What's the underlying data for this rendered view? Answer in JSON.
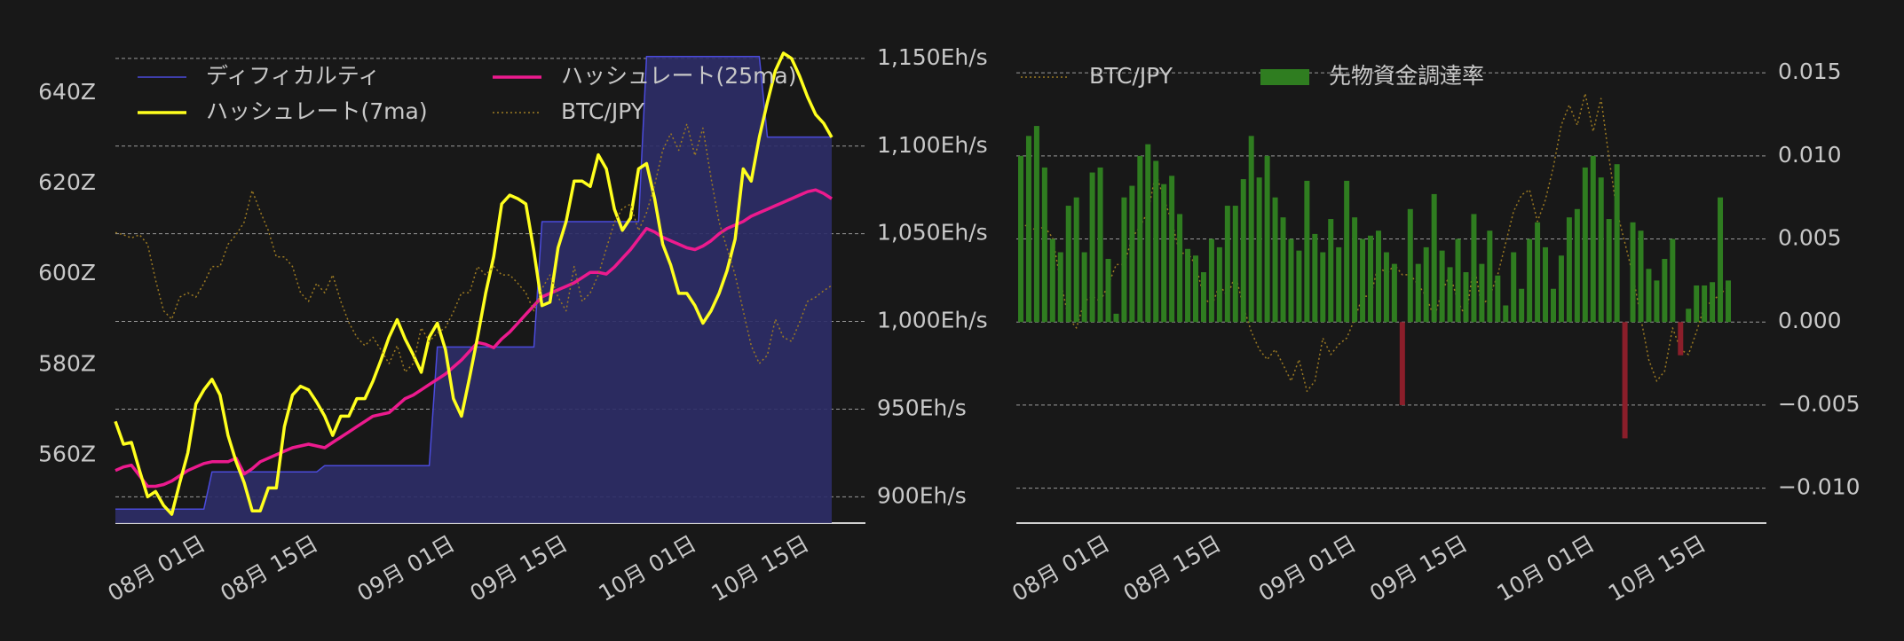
{
  "chart_data": [
    {
      "type": "line",
      "x": [
        "07月 21日",
        "07月 22日",
        "07月 23日",
        "07月 24日",
        "07月 25日",
        "07月 26日",
        "07月 27日",
        "07月 28日",
        "07月 29日",
        "07月 30日",
        "07月 31日",
        "08月 01日",
        "08月 02日",
        "08月 03日",
        "08月 04日",
        "08月 05日",
        "08月 06日",
        "08月 07日",
        "08月 08日",
        "08月 09日",
        "08月 10日",
        "08月 11日",
        "08月 12日",
        "08月 13日",
        "08月 14日",
        "08月 15日",
        "08月 16日",
        "08月 17日",
        "08月 18日",
        "08月 19日",
        "08月 20日",
        "08月 21日",
        "08月 22日",
        "08月 23日",
        "08月 24日",
        "08月 25日",
        "08月 26日",
        "08月 27日",
        "08月 28日",
        "08月 29日",
        "08月 30日",
        "08月 31日",
        "09月 01日",
        "09月 02日",
        "09月 03日",
        "09月 04日",
        "09月 05日",
        "09月 06日",
        "09月 07日",
        "09月 08日",
        "09月 09日",
        "09月 10日",
        "09月 11日",
        "09月 12日",
        "09月 13日",
        "09月 14日",
        "09月 15日",
        "09月 16日",
        "09月 17日",
        "09月 18日",
        "09月 19日",
        "09月 20日",
        "09月 21日",
        "09月 22日",
        "09月 23日",
        "09月 24日",
        "09月 25日",
        "09月 26日",
        "09月 27日",
        "09月 28日",
        "09月 29日",
        "09月 30日",
        "10月 01日",
        "10月 02日",
        "10月 03日",
        "10月 04日",
        "10月 05日",
        "10月 06日",
        "10月 07日",
        "10月 08日",
        "10月 09日",
        "10月 10日",
        "10月 11日",
        "10月 12日",
        "10月 13日",
        "10月 14日",
        "10月 15日",
        "10月 16日",
        "10月 17日",
        "10月 18日"
      ],
      "xticks": [
        "08月 01日",
        "08月 15日",
        "09月 01日",
        "09月 15日",
        "10月 01日",
        "10月 15日"
      ],
      "ylim": [
        545,
        650
      ],
      "yticks": [
        {
          "value": 560,
          "label": "560Z"
        },
        {
          "value": 580,
          "label": "580Z"
        },
        {
          "value": 600,
          "label": "600Z"
        },
        {
          "value": 620,
          "label": "620Z"
        },
        {
          "value": 640,
          "label": "640Z"
        }
      ],
      "y2lim": [
        885,
        1156
      ],
      "y2ticks": [
        {
          "value": 900,
          "label": "900Eh/s"
        },
        {
          "value": 950,
          "label": "950Eh/s"
        },
        {
          "value": 1000,
          "label": "1,000Eh/s"
        },
        {
          "value": 1050,
          "label": "1,050Eh/s"
        },
        {
          "value": 1100,
          "label": "1,100Eh/s"
        },
        {
          "value": 1150,
          "label": "1,150Eh/s"
        }
      ],
      "grid": "y2",
      "legend": "upper left",
      "legend_columns": 2,
      "series": [
        {
          "name": "ディフィカルティ",
          "style": "area",
          "color": "#4b4bdc",
          "fill": "#2d2d68",
          "values": [
            548.1,
            548.1,
            548.1,
            548.1,
            548.1,
            548.1,
            548.1,
            548.1,
            548.1,
            548.1,
            548.1,
            548.1,
            556.3,
            556.3,
            556.3,
            556.3,
            556.3,
            556.3,
            556.3,
            556.3,
            556.3,
            556.3,
            556.3,
            556.3,
            556.3,
            556.3,
            557.7,
            557.7,
            557.7,
            557.7,
            557.7,
            557.7,
            557.7,
            557.7,
            557.7,
            557.7,
            557.7,
            557.7,
            557.7,
            557.7,
            583.9,
            583.9,
            583.9,
            583.9,
            583.9,
            583.9,
            583.9,
            583.9,
            583.9,
            583.9,
            583.9,
            583.9,
            583.9,
            611.6,
            611.6,
            611.6,
            611.6,
            611.6,
            611.6,
            611.6,
            611.6,
            611.6,
            611.6,
            611.6,
            611.6,
            611.6,
            648.1,
            648.1,
            648.1,
            648.1,
            648.1,
            648.1,
            648.1,
            648.1,
            648.1,
            648.1,
            648.1,
            648.1,
            648.1,
            648.1,
            648.1,
            630.3,
            630.3,
            630.3,
            630.3,
            630.3,
            630.3,
            630.3,
            630.3,
            630.3
          ]
        },
        {
          "name": "ハッシュレート(25ma)",
          "style": "line",
          "axis": "y2",
          "color": "#ec1a8e",
          "values": [
            915,
            917,
            918,
            912,
            906,
            906,
            907,
            909,
            912,
            915,
            917,
            919,
            920,
            920,
            920,
            922,
            913,
            916,
            920,
            922,
            924,
            926,
            928,
            929,
            930,
            929,
            928,
            931,
            934,
            937,
            940,
            943,
            946,
            947,
            948,
            952,
            956,
            958,
            961,
            964,
            967,
            970,
            974,
            978,
            983,
            988,
            987,
            985,
            990,
            994,
            999,
            1004,
            1009,
            1014,
            1016,
            1018,
            1020,
            1022,
            1025,
            1028,
            1028,
            1027,
            1031,
            1036,
            1041,
            1047,
            1053,
            1051,
            1048,
            1046,
            1044,
            1042,
            1041,
            1043,
            1046,
            1050,
            1053,
            1055,
            1057,
            1060,
            1062,
            1064,
            1066,
            1068,
            1070,
            1072,
            1074,
            1075,
            1073,
            1070
          ]
        },
        {
          "name": "ハッシュレート(7ma)",
          "style": "line",
          "axis": "y2",
          "color": "#ffff1e",
          "values": [
            943,
            930,
            931,
            915,
            900,
            903,
            895,
            890,
            908,
            925,
            953,
            961,
            967,
            958,
            935,
            920,
            908,
            892,
            892,
            905,
            905,
            940,
            958,
            963,
            961,
            954,
            946,
            935,
            946,
            946,
            956,
            956,
            966,
            978,
            991,
            1001,
            990,
            981,
            971,
            991,
            999,
            984,
            956,
            946,
            968,
            991,
            1016,
            1037,
            1067,
            1072,
            1070,
            1067,
            1040,
            1009,
            1011,
            1042,
            1057,
            1080,
            1080,
            1077,
            1095,
            1087,
            1064,
            1052,
            1059,
            1087,
            1090,
            1070,
            1044,
            1032,
            1016,
            1016,
            1009,
            999,
            1006,
            1016,
            1029,
            1047,
            1087,
            1080,
            1105,
            1125,
            1143,
            1153,
            1150,
            1140,
            1128,
            1118,
            1113,
            1105
          ]
        },
        {
          "name": "BTC/JPY",
          "style": "dotted",
          "color": "#9c7a22",
          "ylim": [
            15000000,
            19500000
          ],
          "values": [
            17750000,
            17730000,
            17700000,
            17730000,
            17640000,
            17300000,
            17010000,
            16930000,
            17140000,
            17180000,
            17140000,
            17270000,
            17430000,
            17430000,
            17640000,
            17730000,
            17850000,
            18150000,
            17950000,
            17770000,
            17520000,
            17520000,
            17430000,
            17180000,
            17100000,
            17270000,
            17180000,
            17350000,
            17100000,
            16900000,
            16760000,
            16680000,
            16760000,
            16640000,
            16510000,
            16680000,
            16430000,
            16510000,
            16850000,
            16720000,
            16800000,
            16850000,
            17000000,
            17180000,
            17180000,
            17430000,
            17350000,
            17430000,
            17350000,
            17350000,
            17270000,
            17180000,
            17010000,
            17220000,
            17350000,
            17140000,
            17010000,
            17430000,
            17100000,
            17180000,
            17350000,
            17600000,
            17850000,
            17980000,
            18020000,
            17770000,
            17940000,
            18200000,
            18530000,
            18690000,
            18530000,
            18780000,
            18480000,
            18740000,
            18270000,
            17850000,
            17600000,
            17350000,
            17010000,
            16680000,
            16510000,
            16590000,
            16930000,
            16760000,
            16720000,
            16900000,
            17100000,
            17140000,
            17200000,
            17250000
          ]
        }
      ]
    },
    {
      "type": "bar",
      "x": [
        "07月 21日",
        "07月 22日",
        "07月 23日",
        "07月 24日",
        "07月 25日",
        "07月 26日",
        "07月 27日",
        "07月 28日",
        "07月 29日",
        "07月 30日",
        "07月 31日",
        "08月 01日",
        "08月 02日",
        "08月 03日",
        "08月 04日",
        "08月 05日",
        "08月 06日",
        "08月 07日",
        "08月 08日",
        "08月 09日",
        "08月 10日",
        "08月 11日",
        "08月 12日",
        "08月 13日",
        "08月 14日",
        "08月 15日",
        "08月 16日",
        "08月 17日",
        "08月 18日",
        "08月 19日",
        "08月 20日",
        "08月 21日",
        "08月 22日",
        "08月 23日",
        "08月 24日",
        "08月 25日",
        "08月 26日",
        "08月 27日",
        "08月 28日",
        "08月 29日",
        "08月 30日",
        "08月 31日",
        "09月 01日",
        "09月 02日",
        "09月 03日",
        "09月 04日",
        "09月 05日",
        "09月 06日",
        "09月 07日",
        "09月 08日",
        "09月 09日",
        "09月 10日",
        "09月 11日",
        "09月 12日",
        "09月 13日",
        "09月 14日",
        "09月 15日",
        "09月 16日",
        "09月 17日",
        "09月 18日",
        "09月 19日",
        "09月 20日",
        "09月 21日",
        "09月 22日",
        "09月 23日",
        "09月 24日",
        "09月 25日",
        "09月 26日",
        "09月 27日",
        "09月 28日",
        "09月 29日",
        "09月 30日",
        "10月 01日",
        "10月 02日",
        "10月 03日",
        "10月 04日",
        "10月 05日",
        "10月 06日",
        "10月 07日",
        "10月 08日",
        "10月 09日",
        "10月 10日",
        "10月 11日",
        "10月 12日",
        "10月 13日",
        "10月 14日",
        "10月 15日",
        "10月 16日",
        "10月 17日",
        "10月 18日"
      ],
      "xticks": [
        "08月 01日",
        "08月 15日",
        "09月 01日",
        "09月 15日",
        "10月 01日",
        "10月 15日"
      ],
      "ylim": [
        -0.0121,
        0.0165
      ],
      "yticks": [
        {
          "value": -0.01,
          "label": "−0.010"
        },
        {
          "value": -0.005,
          "label": "−0.005"
        },
        {
          "value": 0,
          "label": "0.000"
        },
        0.005,
        {
          "value": 0.01,
          "label": "0.010"
        },
        0.015
      ],
      "yaxis_side": "right",
      "grid": "y",
      "legend": "upper left",
      "legend_columns": 2,
      "series": [
        {
          "name": "BTC/JPY",
          "style": "dotted",
          "color": "#9c7a22",
          "ylim": [
            15390000,
            19140000
          ],
          "values": [
            17750000,
            17730000,
            17700000,
            17730000,
            17640000,
            17300000,
            17010000,
            16930000,
            17140000,
            17180000,
            17140000,
            17270000,
            17430000,
            17430000,
            17640000,
            17730000,
            17850000,
            18150000,
            17950000,
            17770000,
            17520000,
            17520000,
            17430000,
            17180000,
            17100000,
            17270000,
            17180000,
            17350000,
            17100000,
            16900000,
            16760000,
            16680000,
            16760000,
            16640000,
            16510000,
            16680000,
            16430000,
            16510000,
            16850000,
            16720000,
            16800000,
            16850000,
            17000000,
            17180000,
            17180000,
            17430000,
            17350000,
            17430000,
            17350000,
            17350000,
            17270000,
            17180000,
            17010000,
            17220000,
            17350000,
            17140000,
            17010000,
            17430000,
            17100000,
            17180000,
            17350000,
            17600000,
            17850000,
            17980000,
            18020000,
            17770000,
            17940000,
            18200000,
            18530000,
            18690000,
            18530000,
            18780000,
            18480000,
            18740000,
            18270000,
            17850000,
            17600000,
            17350000,
            17010000,
            16680000,
            16510000,
            16590000,
            16930000,
            16760000,
            16720000,
            16900000,
            17100000,
            17140000,
            17200000,
            17250000
          ]
        },
        {
          "name": "先物資金調達率",
          "style": "bar",
          "color": "#2f7d20",
          "negative_color": "#8b1e2a",
          "values": [
            0.01,
            0.0112,
            0.0118,
            0.0093,
            0.005,
            0.0042,
            0.007,
            0.0075,
            0.0042,
            0.009,
            0.0093,
            0.0038,
            0.0005,
            0.0075,
            0.0082,
            0.01,
            0.0107,
            0.0097,
            0.0083,
            0.0088,
            0.0065,
            0.0044,
            0.004,
            0.003,
            0.005,
            0.0045,
            0.007,
            0.007,
            0.0086,
            0.0112,
            0.0087,
            0.01,
            0.0075,
            0.0063,
            0.005,
            0.0043,
            0.0085,
            0.0053,
            0.0042,
            0.0062,
            0.0045,
            0.0085,
            0.0063,
            0.005,
            0.0052,
            0.0055,
            0.0042,
            0.0035,
            -0.005,
            0.0068,
            0.0035,
            0.0045,
            0.0077,
            0.0043,
            0.0033,
            0.005,
            0.003,
            0.0065,
            0.0035,
            0.0055,
            0.0028,
            0.001,
            0.0042,
            0.002,
            0.005,
            0.006,
            0.0045,
            0.002,
            0.004,
            0.0063,
            0.0068,
            0.0093,
            0.01,
            0.0087,
            0.0062,
            0.0095,
            -0.007,
            0.006,
            0.0055,
            0.0032,
            0.0025,
            0.0038,
            0.005,
            -0.002,
            0.0008,
            0.0022,
            0.0022,
            0.0024,
            0.0075,
            0.0025
          ]
        }
      ]
    }
  ]
}
